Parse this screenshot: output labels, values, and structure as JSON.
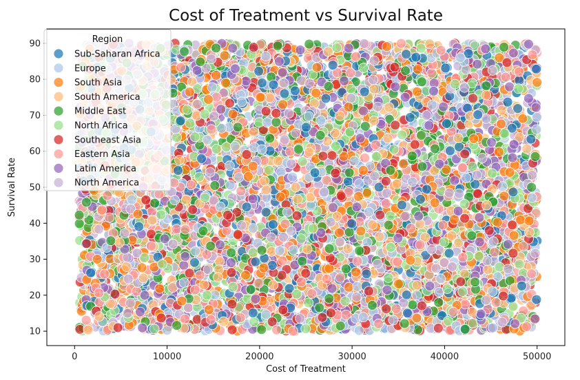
{
  "chart_data": {
    "type": "scatter",
    "title": "Cost of Treatment vs Survival Rate",
    "xlabel": "Cost of Treatment",
    "ylabel": "Survival Rate",
    "xlim": [
      -3000,
      53000
    ],
    "ylim": [
      6,
      94
    ],
    "xticks": [
      0,
      10000,
      20000,
      30000,
      40000,
      50000
    ],
    "yticks": [
      10,
      20,
      30,
      40,
      50,
      60,
      70,
      80,
      90
    ],
    "x_range": [
      500,
      50000
    ],
    "y_range": [
      10,
      90
    ],
    "grid": false,
    "legend": {
      "title": "Region",
      "placement": "top-left"
    },
    "series": [
      {
        "name": "Sub-Saharan Africa",
        "color": "#1f77b4"
      },
      {
        "name": "Europe",
        "color": "#aec7e8"
      },
      {
        "name": "South Asia",
        "color": "#ff7f0e"
      },
      {
        "name": "South America",
        "color": "#ffbb78"
      },
      {
        "name": "Middle East",
        "color": "#2ca02c"
      },
      {
        "name": "North Africa",
        "color": "#98df8a"
      },
      {
        "name": "Southeast Asia",
        "color": "#d62728"
      },
      {
        "name": "Eastern Asia",
        "color": "#ff9896"
      },
      {
        "name": "Latin America",
        "color": "#9467bd"
      },
      {
        "name": "North America",
        "color": "#c5b0d5"
      }
    ]
  }
}
